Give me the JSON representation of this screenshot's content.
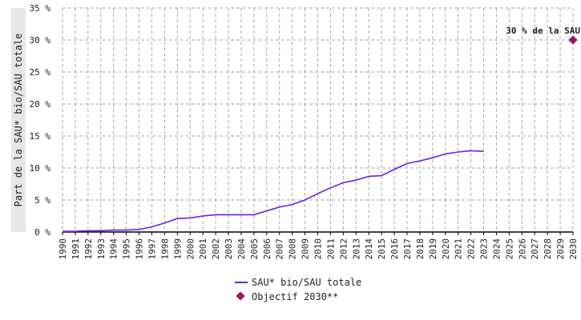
{
  "chart_data": {
    "type": "line",
    "ylabel": "Part de la SAU* bio/SAU totale",
    "xlim": [
      1990,
      2030
    ],
    "ylim": [
      0,
      35
    ],
    "x_ticks": [
      "1990",
      "1991",
      "1992",
      "1993",
      "1994",
      "1995",
      "1996",
      "1997",
      "1998",
      "1999",
      "2000",
      "2001",
      "2002",
      "2003",
      "2004",
      "2005",
      "2006",
      "2007",
      "2008",
      "2009",
      "2010",
      "2011",
      "2012",
      "2013",
      "2014",
      "2015",
      "2016",
      "2017",
      "2018",
      "2019",
      "2020",
      "2021",
      "2022",
      "2023",
      "2024",
      "2025",
      "2026",
      "2027",
      "2028",
      "2029",
      "2030"
    ],
    "y_ticks": [
      {
        "value": 0,
        "label": "0 %"
      },
      {
        "value": 5,
        "label": "5 %"
      },
      {
        "value": 10,
        "label": "10 %"
      },
      {
        "value": 15,
        "label": "15 %"
      },
      {
        "value": 20,
        "label": "20 %"
      },
      {
        "value": 25,
        "label": "25 %"
      },
      {
        "value": 30,
        "label": "30 %"
      },
      {
        "value": 35,
        "label": "35 %"
      }
    ],
    "grid": true,
    "legend_position": "bottom-center",
    "series": [
      {
        "name": "SAU* bio/SAU totale",
        "type": "line",
        "color": "#6a22e0",
        "x": [
          1990,
          1991,
          1992,
          1993,
          1994,
          1995,
          1996,
          1997,
          1998,
          1999,
          2000,
          2001,
          2002,
          2003,
          2004,
          2005,
          2006,
          2007,
          2008,
          2009,
          2010,
          2011,
          2012,
          2013,
          2014,
          2015,
          2016,
          2017,
          2018,
          2019,
          2020,
          2021,
          2022,
          2023
        ],
        "y": [
          0.1,
          0.1,
          0.2,
          0.2,
          0.3,
          0.3,
          0.4,
          0.8,
          1.4,
          2.1,
          2.2,
          2.5,
          2.7,
          2.7,
          2.7,
          2.7,
          3.3,
          3.9,
          4.3,
          5.0,
          6.0,
          6.9,
          7.7,
          8.1,
          8.7,
          8.8,
          9.8,
          10.7,
          11.1,
          11.6,
          12.2,
          12.5,
          12.7,
          12.6
        ]
      },
      {
        "name": "Objectif 2030**",
        "type": "point",
        "color": "#a01860",
        "x": [
          2030
        ],
        "y": [
          30
        ]
      }
    ],
    "annotations": [
      {
        "text": "30 % de la SAU",
        "x": 2030,
        "y": 30
      }
    ]
  },
  "colors": {
    "grid": "#aaaaaa",
    "axis": "#000000",
    "label_band": "#e6e6e6"
  }
}
